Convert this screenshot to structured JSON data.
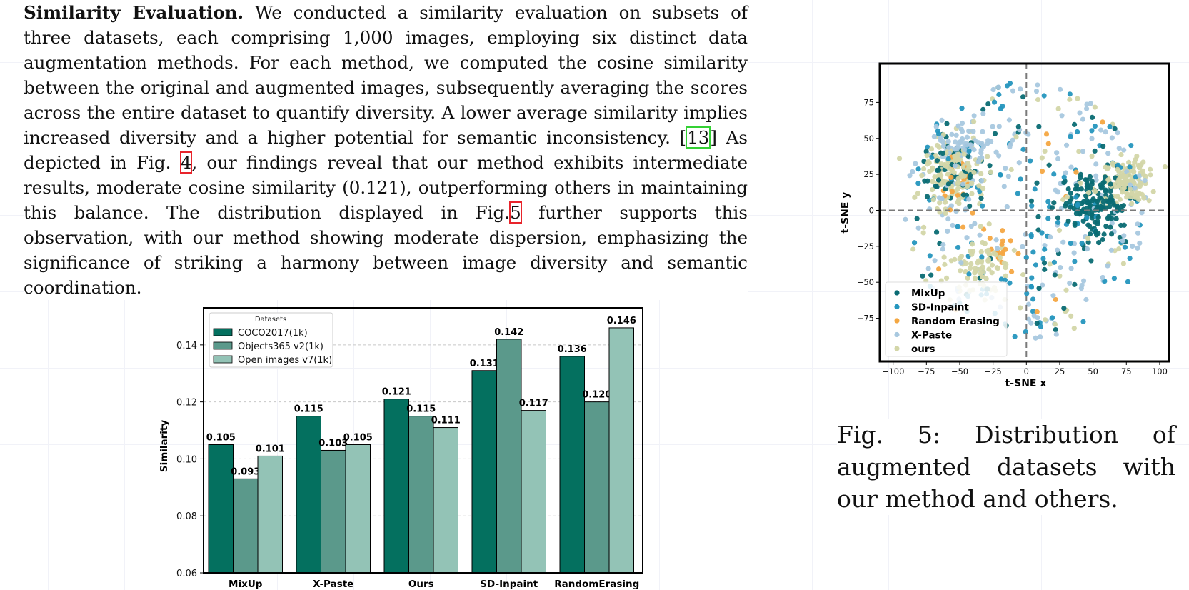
{
  "paragraph": {
    "runin": "Similarity Evaluation.",
    "part1": " We conducted a similarity evaluation on subsets of three datasets, each comprising 1,000 images, employing six distinct data augmentation methods. For each method, we computed the cosine similarity between the original and augmented images, subsequently averaging the scores across the entire dataset to quantify diversity. A lower average similarity implies increased diversity and a higher potential for semantic inconsistency. [",
    "cite": "13",
    "part2": "] As depicted in Fig. ",
    "ref1": "4",
    "part3": ", our findings reveal that our method exhibits intermediate results, moderate cosine similarity (0.121), outperforming others in maintaining this balance. The distribution displayed in Fig.",
    "ref2": "5",
    "part4": " further supports this observation, with our method showing moderate dispersion, emphasizing the significance of striking a harmony between image diversity and semantic coordination."
  },
  "caption": {
    "text": "Fig. 5: Distribution of augmented datasets with our method and others."
  },
  "colors": {
    "coco": "#04705f",
    "objects365": "#5b998b",
    "openimages": "#93c3b6",
    "mixup": "#0a6b73",
    "sd_inpaint": "#2596be",
    "random_erasing": "#f4a742",
    "x_paste": "#a8c8df",
    "ours": "#d3d6a8"
  },
  "chart_data": [
    {
      "type": "bar",
      "categories": [
        "MixUp",
        "X-Paste",
        "Ours",
        "SD-Inpaint",
        "RandomErasing"
      ],
      "series": [
        {
          "name": "COCO2017(1k)",
          "values": [
            0.105,
            0.115,
            0.121,
            0.131,
            0.136
          ]
        },
        {
          "name": "Objects365 v2(1k)",
          "values": [
            0.093,
            0.103,
            0.115,
            0.142,
            0.12
          ]
        },
        {
          "name": "Open images v7(1k)",
          "values": [
            0.101,
            0.105,
            0.111,
            0.117,
            0.146
          ]
        }
      ],
      "data_labels": [
        [
          "0.105",
          "0.115",
          "0.121",
          "0.131",
          "0.136"
        ],
        [
          "0.093",
          "0.103",
          "0.115",
          "0.142",
          "0.120"
        ],
        [
          "0.101",
          "0.105",
          "0.111",
          "0.117",
          "0.146"
        ]
      ],
      "xlabel": "",
      "ylabel": "Similarity",
      "ylim": [
        0.06,
        0.153
      ],
      "yticks": [
        0.06,
        0.08,
        0.1,
        0.12,
        0.14
      ],
      "ytick_labels": [
        "0.06",
        "0.08",
        "0.10",
        "0.12",
        "0.14"
      ],
      "grid": true,
      "legend": {
        "title": "Datasets",
        "placement": "top-left"
      }
    },
    {
      "type": "scatter",
      "xlabel": "t-SNE x",
      "ylabel": "t-SNE y",
      "xlim": [
        -110,
        107
      ],
      "ylim": [
        -105,
        102
      ],
      "xticks": [
        -100,
        -75,
        -50,
        -25,
        0,
        25,
        50,
        75,
        100
      ],
      "xtick_labels": [
        "−100",
        "−75",
        "−50",
        "−25",
        "0",
        "25",
        "50",
        "75",
        "100"
      ],
      "yticks": [
        -75,
        -50,
        -25,
        0,
        25,
        50,
        75
      ],
      "ytick_labels": [
        "−75",
        "−50",
        "−25",
        "0",
        "25",
        "50",
        "75"
      ],
      "reference_lines": {
        "x": 0,
        "y": 0,
        "style": "dashed"
      },
      "legend": {
        "placement": "bottom-left"
      },
      "series": [
        {
          "name": "MixUp",
          "count": 260,
          "clusters": [
            [
              50,
              5,
              22,
              0.55
            ],
            [
              -52,
              30,
              22,
              0.2
            ]
          ]
        },
        {
          "name": "SD-Inpaint",
          "count": 130,
          "clusters": []
        },
        {
          "name": "Random Erasing",
          "count": 45,
          "clusters": [
            [
              -55,
              20,
              15,
              0.4
            ],
            [
              -15,
              -28,
              12,
              0.3
            ]
          ]
        },
        {
          "name": "X-Paste",
          "count": 230,
          "clusters": [
            [
              -45,
              40,
              20,
              0.3
            ]
          ]
        },
        {
          "name": "ours",
          "count": 380,
          "clusters": [
            [
              -55,
              25,
              22,
              0.35
            ],
            [
              75,
              20,
              15,
              0.3
            ],
            [
              -35,
              -40,
              20,
              0.2
            ]
          ]
        }
      ]
    }
  ]
}
